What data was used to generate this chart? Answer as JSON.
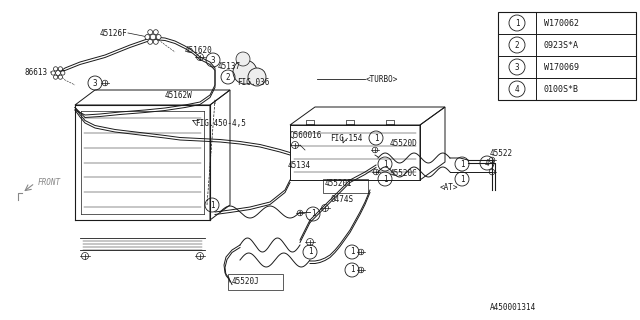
{
  "bg_color": "#ffffff",
  "line_color": "#1a1a1a",
  "legend_items": [
    {
      "num": "1",
      "code": "W170062"
    },
    {
      "num": "2",
      "code": "0923S*A"
    },
    {
      "num": "3",
      "code": "W170069"
    },
    {
      "num": "4",
      "code": "0100S*B"
    }
  ]
}
